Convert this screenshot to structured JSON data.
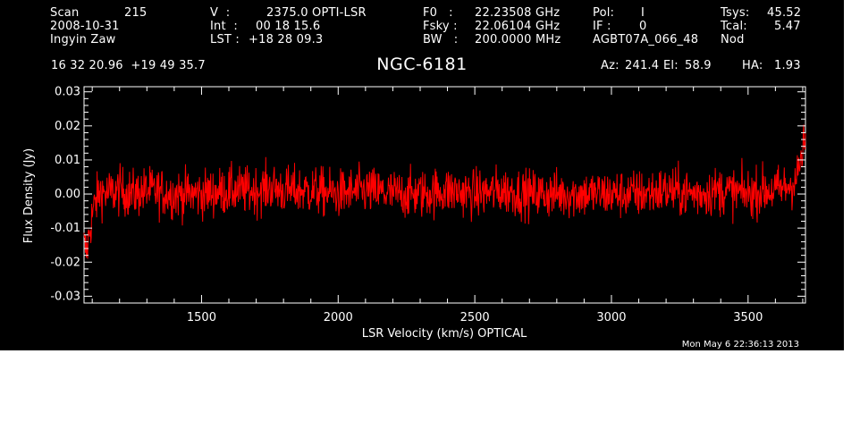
{
  "header": {
    "scan_label": "Scan",
    "scan_value": "215",
    "date": "2008-10-31",
    "observer": "Ingyin Zaw",
    "v_label": "V  :",
    "v_value": "2375.0 OPTI-LSR",
    "int_label": "Int  :",
    "int_value": "00 18 15.6",
    "lst_label": "LST :",
    "lst_value": "+18 28 09.3",
    "f0_label": "F0   :",
    "f0_value": "22.23508 GHz",
    "fsky_label": "Fsky :",
    "fsky_value": "22.06104 GHz",
    "bw_label": "BW   :",
    "bw_value": "200.0000 MHz",
    "pol_label": "Pol:",
    "pol_value": "I",
    "if_label": "IF :",
    "if_value": "0",
    "project": "AGBT07A_066_48",
    "tsys_label": "Tsys:",
    "tsys_value": "45.52",
    "tcal_label": "Tcal:",
    "tcal_value": "5.47",
    "mode": "Nod",
    "coords": "16 32 20.96  +19 49 35.7",
    "az_label": "Az:",
    "az_value": "241.4",
    "el_label": "El:",
    "el_value": "58.9",
    "ha_label": "HA:",
    "ha_value": "1.93"
  },
  "timestamp": "Mon May  6 22:36:13 2013",
  "colors": {
    "background": "#000000",
    "axes": "#ffffff",
    "series": "#ff0000"
  },
  "chart_data": {
    "type": "line",
    "title": "NGC-6181",
    "xlabel": "LSR Velocity (km/s) OPTICAL",
    "ylabel": "Flux Density (Jy)",
    "xlim": [
      1070,
      3710
    ],
    "ylim": [
      -0.032,
      0.0315
    ],
    "x_ticks": [
      1500,
      2000,
      2500,
      3000,
      3500
    ],
    "x_tick_labels": [
      "1500",
      "2000",
      "2500",
      "3000",
      "3500"
    ],
    "y_ticks": [
      -0.03,
      -0.02,
      -0.01,
      0.0,
      0.01,
      0.02,
      0.03
    ],
    "y_tick_labels": [
      "-0.03",
      "-0.02",
      "-0.01",
      "0.00",
      "0.01",
      "0.02",
      "0.03"
    ],
    "grid": false,
    "series": [
      {
        "color": "#ff0000",
        "x": [
          1070,
          1080,
          1090,
          1100,
          1110,
          1120,
          1130,
          1150,
          1200,
          1250,
          1300,
          1400,
          1500,
          1600,
          1700,
          1750,
          1800,
          1900,
          2000,
          2100,
          2200,
          2300,
          2400,
          2500,
          2600,
          2700,
          2800,
          2900,
          3000,
          3100,
          3200,
          3300,
          3400,
          3500,
          3550,
          3600,
          3640,
          3660,
          3680,
          3690,
          3700,
          3710
        ],
        "y": [
          -0.015,
          -0.017,
          -0.011,
          -0.006,
          -0.003,
          -0.001,
          0.001,
          0.0,
          0.001,
          0.0,
          0.001,
          0.0,
          0.0,
          0.001,
          0.001,
          0.002,
          0.001,
          0.001,
          0.0,
          0.001,
          0.0,
          0.0,
          0.001,
          0.0,
          0.001,
          0.0,
          0.0,
          0.0,
          0.0,
          0.0,
          0.001,
          0.0,
          0.001,
          0.0,
          0.001,
          0.001,
          0.002,
          0.003,
          0.005,
          0.009,
          0.012,
          0.016
        ]
      }
    ]
  }
}
